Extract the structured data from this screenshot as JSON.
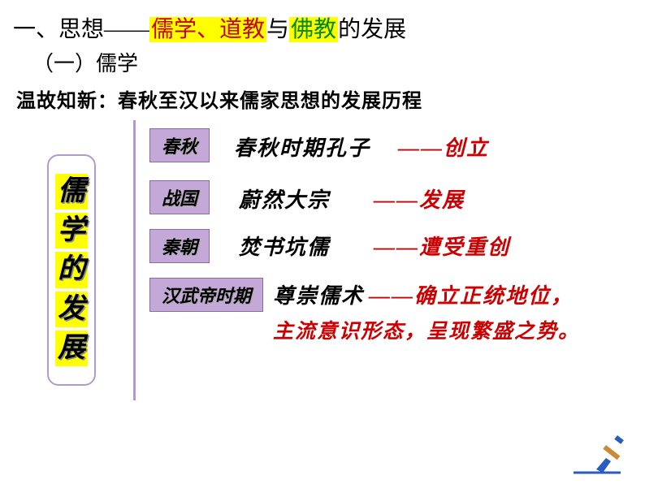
{
  "title": {
    "prefix": "一、思想——",
    "hl1": "儒学、道教",
    "mid": "与",
    "hl2": "佛教",
    "suffix": "的发展"
  },
  "subtitle": "（一）儒学",
  "review": "温故知新：春秋至汉以来儒家思想的发展历程",
  "leftBox": [
    "儒",
    "学",
    "的",
    "发",
    "展"
  ],
  "rows": [
    {
      "tag": "春秋",
      "tagLeft": 184,
      "tagTop": 158,
      "tagW": 72,
      "desc": "春秋时期孔子",
      "descLeft": 288,
      "descTop": 162,
      "result": "——创立",
      "resultLeft": 490,
      "resultTop": 162
    },
    {
      "tag": "战国",
      "tagLeft": 184,
      "tagTop": 222,
      "tagW": 72,
      "desc": "蔚然大宗",
      "descLeft": 294,
      "descTop": 226,
      "result": "——发展",
      "resultLeft": 460,
      "resultTop": 226
    },
    {
      "tag": "秦朝",
      "tagLeft": 184,
      "tagTop": 282,
      "tagW": 72,
      "desc": "焚书坑儒",
      "descLeft": 294,
      "descTop": 284,
      "result": "——遭受重创",
      "resultLeft": 460,
      "resultTop": 284
    },
    {
      "tag": "汉武帝时期",
      "tagLeft": 184,
      "tagTop": 342,
      "tagW": 140,
      "desc": "尊崇儒术",
      "descLeft": 336,
      "descTop": 344,
      "result": "——确立正统地位，",
      "resultLeft": 454,
      "resultTop": 344
    }
  ],
  "line2": "主流意识形态，呈现繁盛之势。",
  "line2Left": 336,
  "line2Top": 388,
  "colors": {
    "highlight_bg": "#ffff00",
    "text_red": "#cc0000",
    "text_green": "#008800",
    "tag_bg": "#c4a8d8",
    "border_purple": "#b399cc"
  }
}
